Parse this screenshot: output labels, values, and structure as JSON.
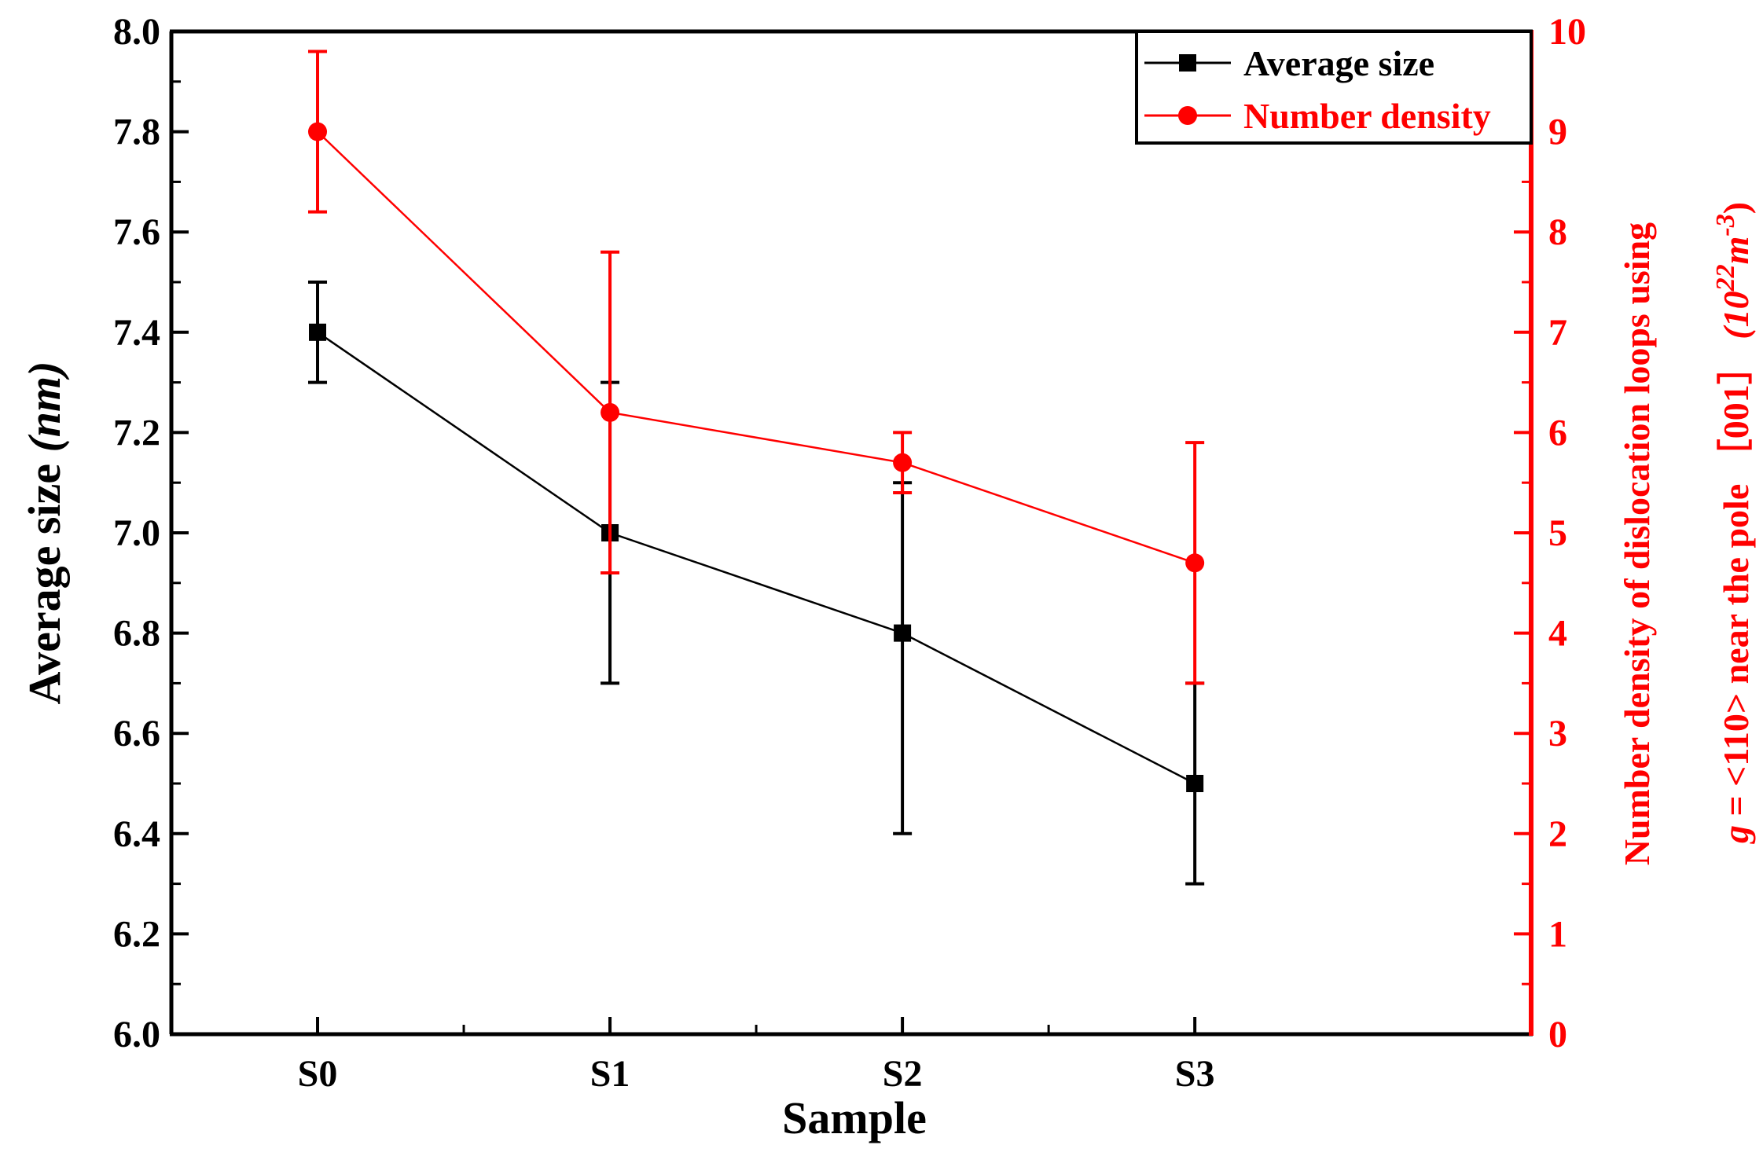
{
  "chart_data": {
    "type": "line",
    "categories": [
      "S0",
      "S1",
      "S2",
      "S3"
    ],
    "xlabel": "Sample",
    "ylabel_left": {
      "main": "Average size ",
      "unit": "(nm)"
    },
    "ylabel_right": {
      "line1": "Number density of dislocation loops using",
      "line2_prefix": "g",
      "line2_main": " = <110> near the pole ［001］ ",
      "line2_unit_base": "(10",
      "line2_unit_exp1": "22",
      "line2_unit_mid": "m",
      "line2_unit_exp2": "-3",
      "line2_unit_close": ")"
    },
    "ylim_left": [
      6.0,
      8.0
    ],
    "yticks_left": [
      "6.0",
      "6.2",
      "6.4",
      "6.6",
      "6.8",
      "7.0",
      "7.2",
      "7.4",
      "7.6",
      "7.8",
      "8.0"
    ],
    "ylim_right": [
      0,
      10
    ],
    "yticks_right": [
      "0",
      "1",
      "2",
      "3",
      "4",
      "5",
      "6",
      "7",
      "8",
      "9",
      "10"
    ],
    "series": [
      {
        "name": "Average size",
        "axis": "left",
        "color": "#000000",
        "marker": "square",
        "values": [
          7.4,
          7.0,
          6.8,
          6.5
        ],
        "error_low": [
          7.3,
          6.7,
          6.4,
          6.3
        ],
        "error_high": [
          7.5,
          7.3,
          7.1,
          6.7
        ]
      },
      {
        "name": "Number density",
        "axis": "right",
        "color": "#ff0000",
        "marker": "circle",
        "values": [
          9.0,
          6.2,
          5.7,
          4.7
        ],
        "error_low": [
          8.2,
          4.6,
          5.4,
          3.5
        ],
        "error_high": [
          9.8,
          7.8,
          6.0,
          5.9
        ]
      }
    ],
    "legend_position": "top-right"
  }
}
